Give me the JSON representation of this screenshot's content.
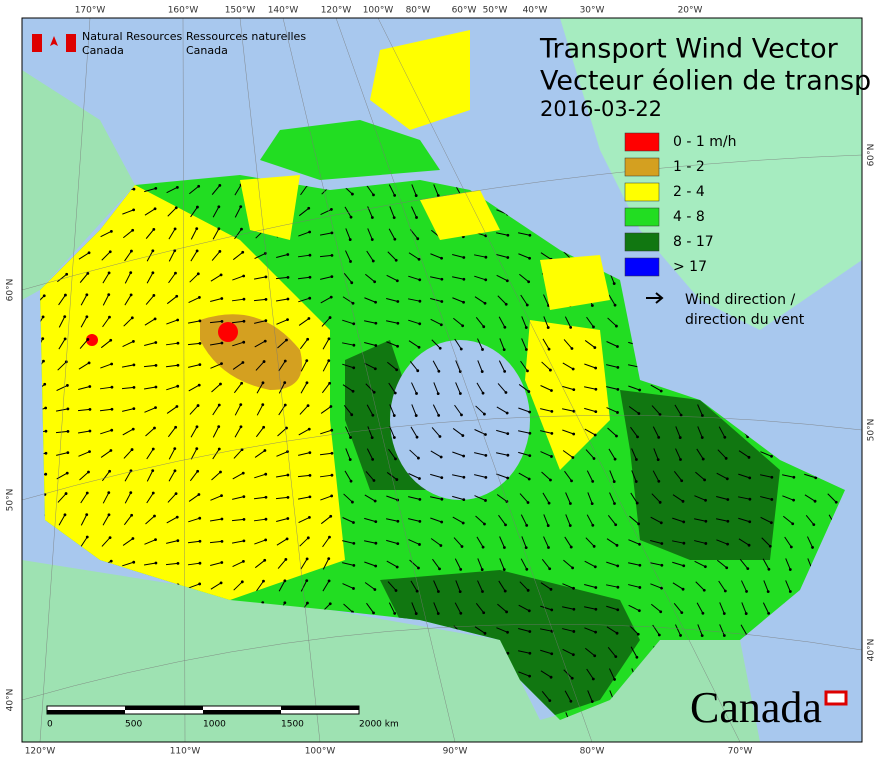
{
  "header": {
    "agency_en": [
      "Natural Resources",
      "Canada"
    ],
    "agency_fr": [
      "Ressources naturelles",
      "Canada"
    ]
  },
  "title": [
    "Transport Wind Vector",
    "Vecteur éolien de transp"
  ],
  "date": "2016-03-22",
  "legend": [
    {
      "label": "0 - 1 m/h",
      "color": "#ff0000"
    },
    {
      "label": "1 - 2",
      "color": "#d4a020"
    },
    {
      "label": "2 - 4",
      "color": "#ffff00"
    },
    {
      "label": "4 - 8",
      "color": "#22dd22"
    },
    {
      "label": "8 - 17",
      "color": "#117711"
    },
    {
      "label": "> 17",
      "color": "#0000ff"
    }
  ],
  "legend_arrow": [
    "Wind direction /",
    "direction du vent"
  ],
  "top_labels": [
    "170°W",
    "160°W",
    "150°W",
    "140°W",
    "120°W",
    "100°W",
    "80°W",
    "60°W",
    "50°W",
    "40°W",
    "30°W",
    "20°W"
  ],
  "bottom_labels": [
    "120°W",
    "110°W",
    "100°W",
    "90°W",
    "80°W",
    "70°W"
  ],
  "left_labels": [
    "60°N",
    "50°N",
    "40°N"
  ],
  "right_labels": [
    "60°N",
    "50°N",
    "40°N"
  ],
  "scale": {
    "labels": [
      "0",
      "500",
      "1000",
      "1500",
      "2000 km"
    ]
  },
  "wordmark": "Canada"
}
